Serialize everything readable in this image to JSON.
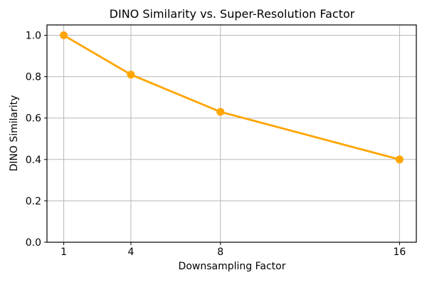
{
  "chart_data": {
    "type": "line",
    "title": "DINO Similarity vs. Super-Resolution Factor",
    "xlabel": "Downsampling Factor",
    "ylabel": "DINO Similarity",
    "series": [
      {
        "name": "DINO Similarity",
        "x": [
          1,
          4,
          8,
          16
        ],
        "values": [
          1.0,
          0.81,
          0.63,
          0.4
        ]
      }
    ],
    "xticks": [
      1,
      4,
      8,
      16
    ],
    "xtick_labels": [
      "1",
      "4",
      "8",
      "16"
    ],
    "yticks": [
      0.0,
      0.2,
      0.4,
      0.6,
      0.8,
      1.0
    ],
    "ytick_labels": [
      "0.0",
      "0.2",
      "0.4",
      "0.6",
      "0.8",
      "1.0"
    ],
    "xlim": [
      0.25,
      16.75
    ],
    "ylim": [
      0,
      1.05
    ],
    "grid": true,
    "legend": false,
    "line_color": "#FFA500",
    "marker": "o",
    "marker_radius": 5.5,
    "line_width": 2.8,
    "grid_color": "#b8b8b8",
    "spine_color": "#000000",
    "text_color": "#000000",
    "background": "#ffffff"
  }
}
